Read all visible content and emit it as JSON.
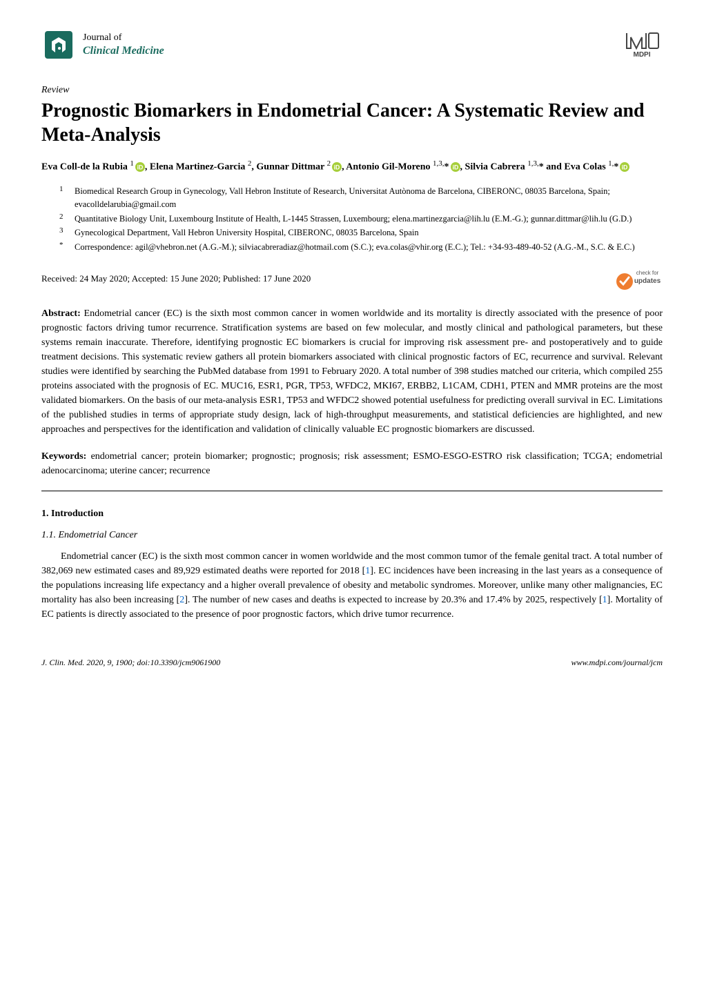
{
  "journal": {
    "prefix": "Journal of",
    "name": "Clinical Medicine",
    "logo_bg": "#1a6b5e",
    "logo_fg": "#ffffff"
  },
  "publisher": {
    "name": "MDPI",
    "logo_color": "#444444"
  },
  "article": {
    "type": "Review",
    "title": "Prognostic Biomarkers in Endometrial Cancer: A Systematic Review and Meta-Analysis"
  },
  "authors_html": "Eva Coll-de la Rubia <sup>1</sup>{ORCID}, Elena Martinez-Garcia <sup>2</sup>, Gunnar Dittmar <sup>2</sup>{ORCID}, Antonio Gil-Moreno <sup>1,3,</sup>*{ORCID}, Silvia Cabrera <sup>1,3,</sup>* and Eva Colas <sup>1,</sup>*{ORCID}",
  "orcid_color": "#a6ce39",
  "affiliations": [
    {
      "num": "1",
      "text": "Biomedical Research Group in Gynecology, Vall Hebron Institute of Research, Universitat Autònoma de Barcelona, CIBERONC, 08035 Barcelona, Spain; evacolldelarubia@gmail.com"
    },
    {
      "num": "2",
      "text": "Quantitative Biology Unit, Luxembourg Institute of Health, L-1445 Strassen, Luxembourg; elena.martinezgarcia@lih.lu (E.M.-G.); gunnar.dittmar@lih.lu (G.D.)"
    },
    {
      "num": "3",
      "text": "Gynecological Department, Vall Hebron University Hospital, CIBERONC, 08035 Barcelona, Spain"
    },
    {
      "num": "*",
      "text": "Correspondence: agil@vhebron.net (A.G.-M.); silviacabreradiaz@hotmail.com (S.C.); eva.colas@vhir.org (E.C.); Tel.: +34-93-489-40-52 (A.G.-M., S.C. & E.C.)"
    }
  ],
  "dates": "Received: 24 May 2020; Accepted: 15 June 2020; Published: 17 June 2020",
  "check_updates": {
    "label_top": "check for",
    "label_bottom": "updates",
    "color": "#ef7d30"
  },
  "abstract": {
    "label": "Abstract:",
    "text": " Endometrial cancer (EC) is the sixth most common cancer in women worldwide and its mortality is directly associated with the presence of poor prognostic factors driving tumor recurrence. Stratification systems are based on few molecular, and mostly clinical and pathological parameters, but these systems remain inaccurate. Therefore, identifying prognostic EC biomarkers is crucial for improving risk assessment pre- and postoperatively and to guide treatment decisions. This systematic review gathers all protein biomarkers associated with clinical prognostic factors of EC, recurrence and survival. Relevant studies were identified by searching the PubMed database from 1991 to February 2020. A total number of 398 studies matched our criteria, which compiled 255 proteins associated with the prognosis of EC. MUC16, ESR1, PGR, TP53, WFDC2, MKI67, ERBB2, L1CAM, CDH1, PTEN and MMR proteins are the most validated biomarkers. On the basis of our meta-analysis ESR1, TP53 and WFDC2 showed potential usefulness for predicting overall survival in EC. Limitations of the published studies in terms of appropriate study design, lack of high-throughput measurements, and statistical deficiencies are highlighted, and new approaches and perspectives for the identification and validation of clinically valuable EC prognostic biomarkers are discussed."
  },
  "keywords": {
    "label": "Keywords:",
    "text": " endometrial cancer; protein biomarker; prognostic; prognosis; risk assessment; ESMO-ESGO-ESTRO risk classification; TCGA; endometrial adenocarcinoma; uterine cancer; recurrence"
  },
  "section1": {
    "heading": "1. Introduction",
    "sub1": {
      "heading": "1.1. Endometrial Cancer",
      "p1_before_ref1": "Endometrial cancer (EC) is the sixth most common cancer in women worldwide and the most common tumor of the female genital tract. A total number of 382,069 new estimated cases and 89,929 estimated deaths were reported for 2018 [",
      "ref1": "1",
      "p1_mid1": "]. EC incidences have been increasing in the last years as a consequence of the populations increasing life expectancy and a higher overall prevalence of obesity and metabolic syndromes. Moreover, unlike many other malignancies, EC mortality has also been increasing [",
      "ref2": "2",
      "p1_mid2": "]. The number of new cases and deaths is expected to increase by 20.3% and 17.4% by 2025, respectively [",
      "ref3": "1",
      "p1_after": "]. Mortality of EC patients is directly associated to the presence of poor prognostic factors, which drive tumor recurrence."
    }
  },
  "footer": {
    "left": "J. Clin. Med. 2020, 9, 1900; doi:10.3390/jcm9061900",
    "right": "www.mdpi.com/journal/jcm"
  }
}
